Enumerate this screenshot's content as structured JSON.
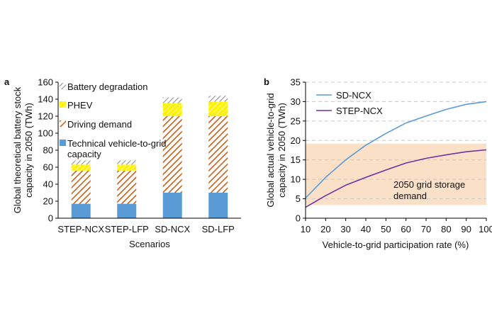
{
  "chart_data": [
    {
      "type": "bar",
      "stacked": true,
      "panel_label": "a",
      "categories": [
        "STEP-NCX",
        "STEP-LFP",
        "SD-NCX",
        "SD-LFP"
      ],
      "series": [
        {
          "name": "Technical vehicle-to-grid capacity",
          "values": [
            17,
            17,
            30,
            30
          ],
          "color": "#5b9bd5"
        },
        {
          "name": "Driving demand",
          "values": [
            39,
            39,
            90,
            90
          ],
          "color": "#c55a11"
        },
        {
          "name": "PHEV",
          "values": [
            7,
            7,
            15,
            17
          ],
          "color": "#ffd400"
        },
        {
          "name": "Battery degradation",
          "values": [
            5,
            5,
            7,
            7
          ],
          "color": "#7f7f7f"
        }
      ],
      "legend": {
        "items": [
          {
            "line1": "Battery degradation"
          },
          {
            "line1": "PHEV"
          },
          {
            "line1": "Driving demand"
          },
          {
            "line1": "Technical vehicle-to-grid",
            "line2": "capacity"
          }
        ],
        "placement": "top-left"
      },
      "xlabel": "Scenarios",
      "ylabel_line1": "Global theoretical battery stock",
      "ylabel_line2": "capacity in 2050 (TWh)",
      "ylim": [
        0,
        160
      ],
      "yticks": [
        "0",
        "20",
        "40",
        "60",
        "80",
        "100",
        "120",
        "140",
        "160"
      ]
    },
    {
      "type": "line",
      "panel_label": "b",
      "x": [
        10,
        20,
        30,
        40,
        50,
        60,
        70,
        80,
        90,
        100
      ],
      "series": [
        {
          "name": "SD-NCX",
          "values": [
            5.2,
            10.5,
            15.0,
            18.8,
            21.8,
            24.5,
            26.3,
            28.0,
            29.3,
            30.0
          ],
          "color": "#5b9bd5"
        },
        {
          "name": "STEP-NCX",
          "values": [
            2.8,
            5.8,
            8.5,
            10.5,
            12.4,
            14.2,
            15.4,
            16.3,
            17.1,
            17.6
          ],
          "color": "#7030a0"
        }
      ],
      "band": {
        "label_line1": "2050 grid storage",
        "label_line2": "demand",
        "ymin": 3.4,
        "ymax": 19.2,
        "color": "#fbe0c8",
        "text_color": "#f4b183"
      },
      "xlabel": "Vehicle-to-grid participation rate (%)",
      "ylabel_line1": "Global actual vehicle-to-grid",
      "ylabel_line2": "capacity in 2050 (TWh)",
      "xlim": [
        10,
        100
      ],
      "ylim": [
        0,
        35
      ],
      "xticks": [
        "10",
        "20",
        "30",
        "40",
        "50",
        "60",
        "70",
        "80",
        "90",
        "100"
      ],
      "yticks": [
        "0",
        "5",
        "10",
        "15",
        "20",
        "25",
        "30",
        "35"
      ],
      "legend_placement": "top-left",
      "grid": "horizontal dashed"
    }
  ]
}
